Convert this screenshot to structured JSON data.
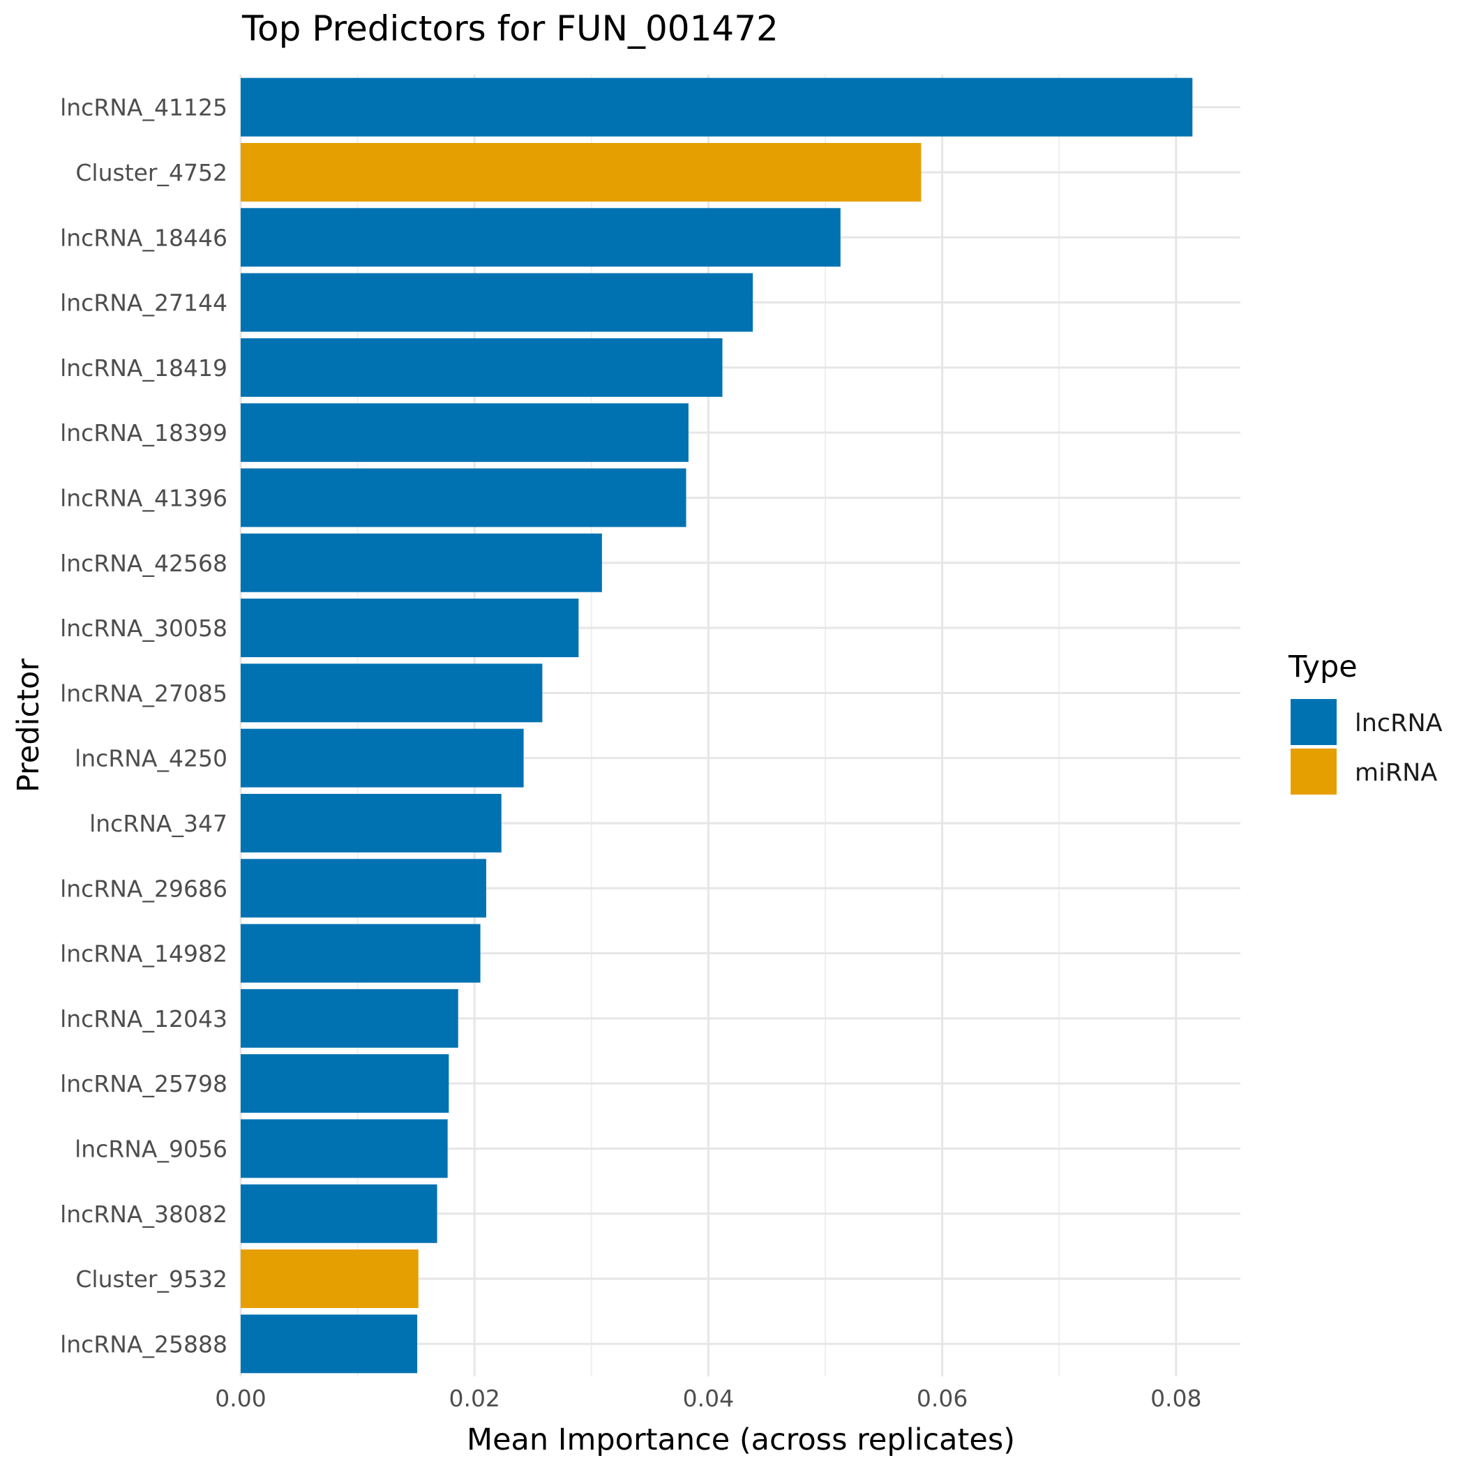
{
  "chart_data": {
    "type": "bar",
    "orientation": "horizontal",
    "title": "Top Predictors for FUN_001472",
    "xlabel": "Mean Importance (across replicates)",
    "ylabel": "Predictor",
    "xlim": [
      0,
      0.0855
    ],
    "x_ticks": [
      0,
      0.02,
      0.04,
      0.06,
      0.08
    ],
    "x_tick_labels": [
      "0.00",
      "0.02",
      "0.04",
      "0.06",
      "0.08"
    ],
    "grid": true,
    "legend": {
      "title": "Type",
      "position": "right",
      "entries": [
        {
          "name": "lncRNA",
          "color": "#0072B2"
        },
        {
          "name": "miRNA",
          "color": "#E69F00"
        }
      ]
    },
    "categories": [
      "lncRNA_41125",
      "Cluster_4752",
      "lncRNA_18446",
      "lncRNA_27144",
      "lncRNA_18419",
      "lncRNA_18399",
      "lncRNA_41396",
      "lncRNA_42568",
      "lncRNA_30058",
      "lncRNA_27085",
      "lncRNA_4250",
      "lncRNA_347",
      "lncRNA_29686",
      "lncRNA_14982",
      "lncRNA_12043",
      "lncRNA_25798",
      "lncRNA_9056",
      "lncRNA_38082",
      "Cluster_9532",
      "lncRNA_25888"
    ],
    "values": [
      0.0814,
      0.0582,
      0.0513,
      0.0438,
      0.0412,
      0.0383,
      0.0381,
      0.0309,
      0.0289,
      0.0258,
      0.0242,
      0.0223,
      0.021,
      0.0205,
      0.0186,
      0.0178,
      0.0177,
      0.0168,
      0.0152,
      0.0151
    ],
    "types": [
      "lncRNA",
      "miRNA",
      "lncRNA",
      "lncRNA",
      "lncRNA",
      "lncRNA",
      "lncRNA",
      "lncRNA",
      "lncRNA",
      "lncRNA",
      "lncRNA",
      "lncRNA",
      "lncRNA",
      "lncRNA",
      "lncRNA",
      "lncRNA",
      "lncRNA",
      "lncRNA",
      "miRNA",
      "lncRNA"
    ]
  }
}
